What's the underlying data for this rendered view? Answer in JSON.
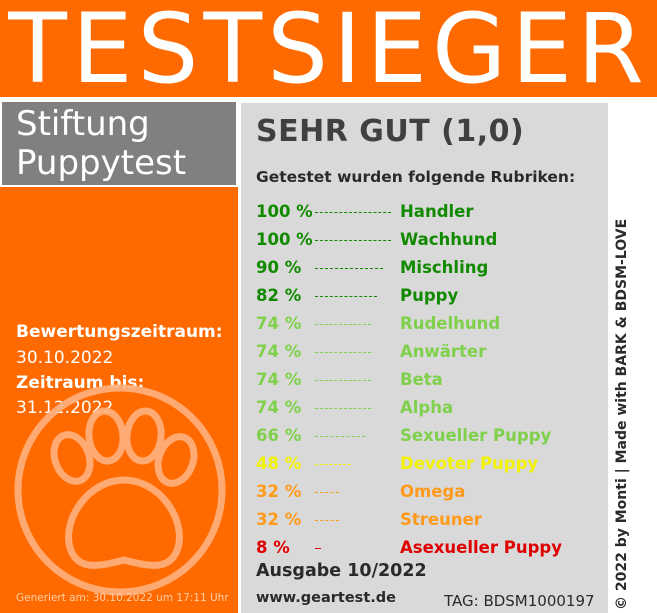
{
  "header": {
    "title": "TESTSIEGER"
  },
  "brand": {
    "line1": "Stiftung",
    "line2": "Puppytest"
  },
  "period": {
    "label1": "Bewertungszeitraum:",
    "value1": "30.10.2022",
    "label2": "Zeitraum bis:",
    "value2": "31.12.2022"
  },
  "generated": "Generiert am: 30.10.2022 um 17:11 Uhr",
  "rating": "SEHR GUT (1,0)",
  "subtitle": "Getestet wurden folgende Rubriken:",
  "rows": [
    {
      "pct": "100 %",
      "name": "Handler",
      "color": "#118a00",
      "value": 100
    },
    {
      "pct": "100 %",
      "name": "Wachhund",
      "color": "#118a00",
      "value": 100
    },
    {
      "pct": "90 %",
      "name": "Mischling",
      "color": "#118a00",
      "value": 90
    },
    {
      "pct": "82 %",
      "name": "Puppy",
      "color": "#118a00",
      "value": 82
    },
    {
      "pct": "74 %",
      "name": "Rudelhund",
      "color": "#7fd04a",
      "value": 74
    },
    {
      "pct": "74 %",
      "name": "Anwärter",
      "color": "#7fd04a",
      "value": 74
    },
    {
      "pct": "74 %",
      "name": "Beta",
      "color": "#7fd04a",
      "value": 74
    },
    {
      "pct": "74 %",
      "name": "Alpha",
      "color": "#7fd04a",
      "value": 74
    },
    {
      "pct": "66 %",
      "name": "Sexueller Puppy",
      "color": "#7fd04a",
      "value": 66
    },
    {
      "pct": "48 %",
      "name": "Devoter Puppy",
      "color": "#f2f200",
      "value": 48
    },
    {
      "pct": "32 %",
      "name": "Omega",
      "color": "#ff9a1a",
      "value": 32
    },
    {
      "pct": "32 %",
      "name": "Streuner",
      "color": "#ff9a1a",
      "value": 32
    },
    {
      "pct": "8 %",
      "name": "Asexueller Puppy",
      "color": "#e00000",
      "value": 8
    }
  ],
  "issue": "Ausgabe 10/2022",
  "website": "www.geartest.de",
  "tag": "TAG: BDSM1000197",
  "copyright": "© 2022 by Monti | Made with BARK & BDSM-LOVE",
  "icons": {
    "paw": "paw-icon"
  },
  "colors": {
    "accent": "#ff6a00",
    "panel": "#d9d9d9",
    "brand_box": "#808080"
  }
}
